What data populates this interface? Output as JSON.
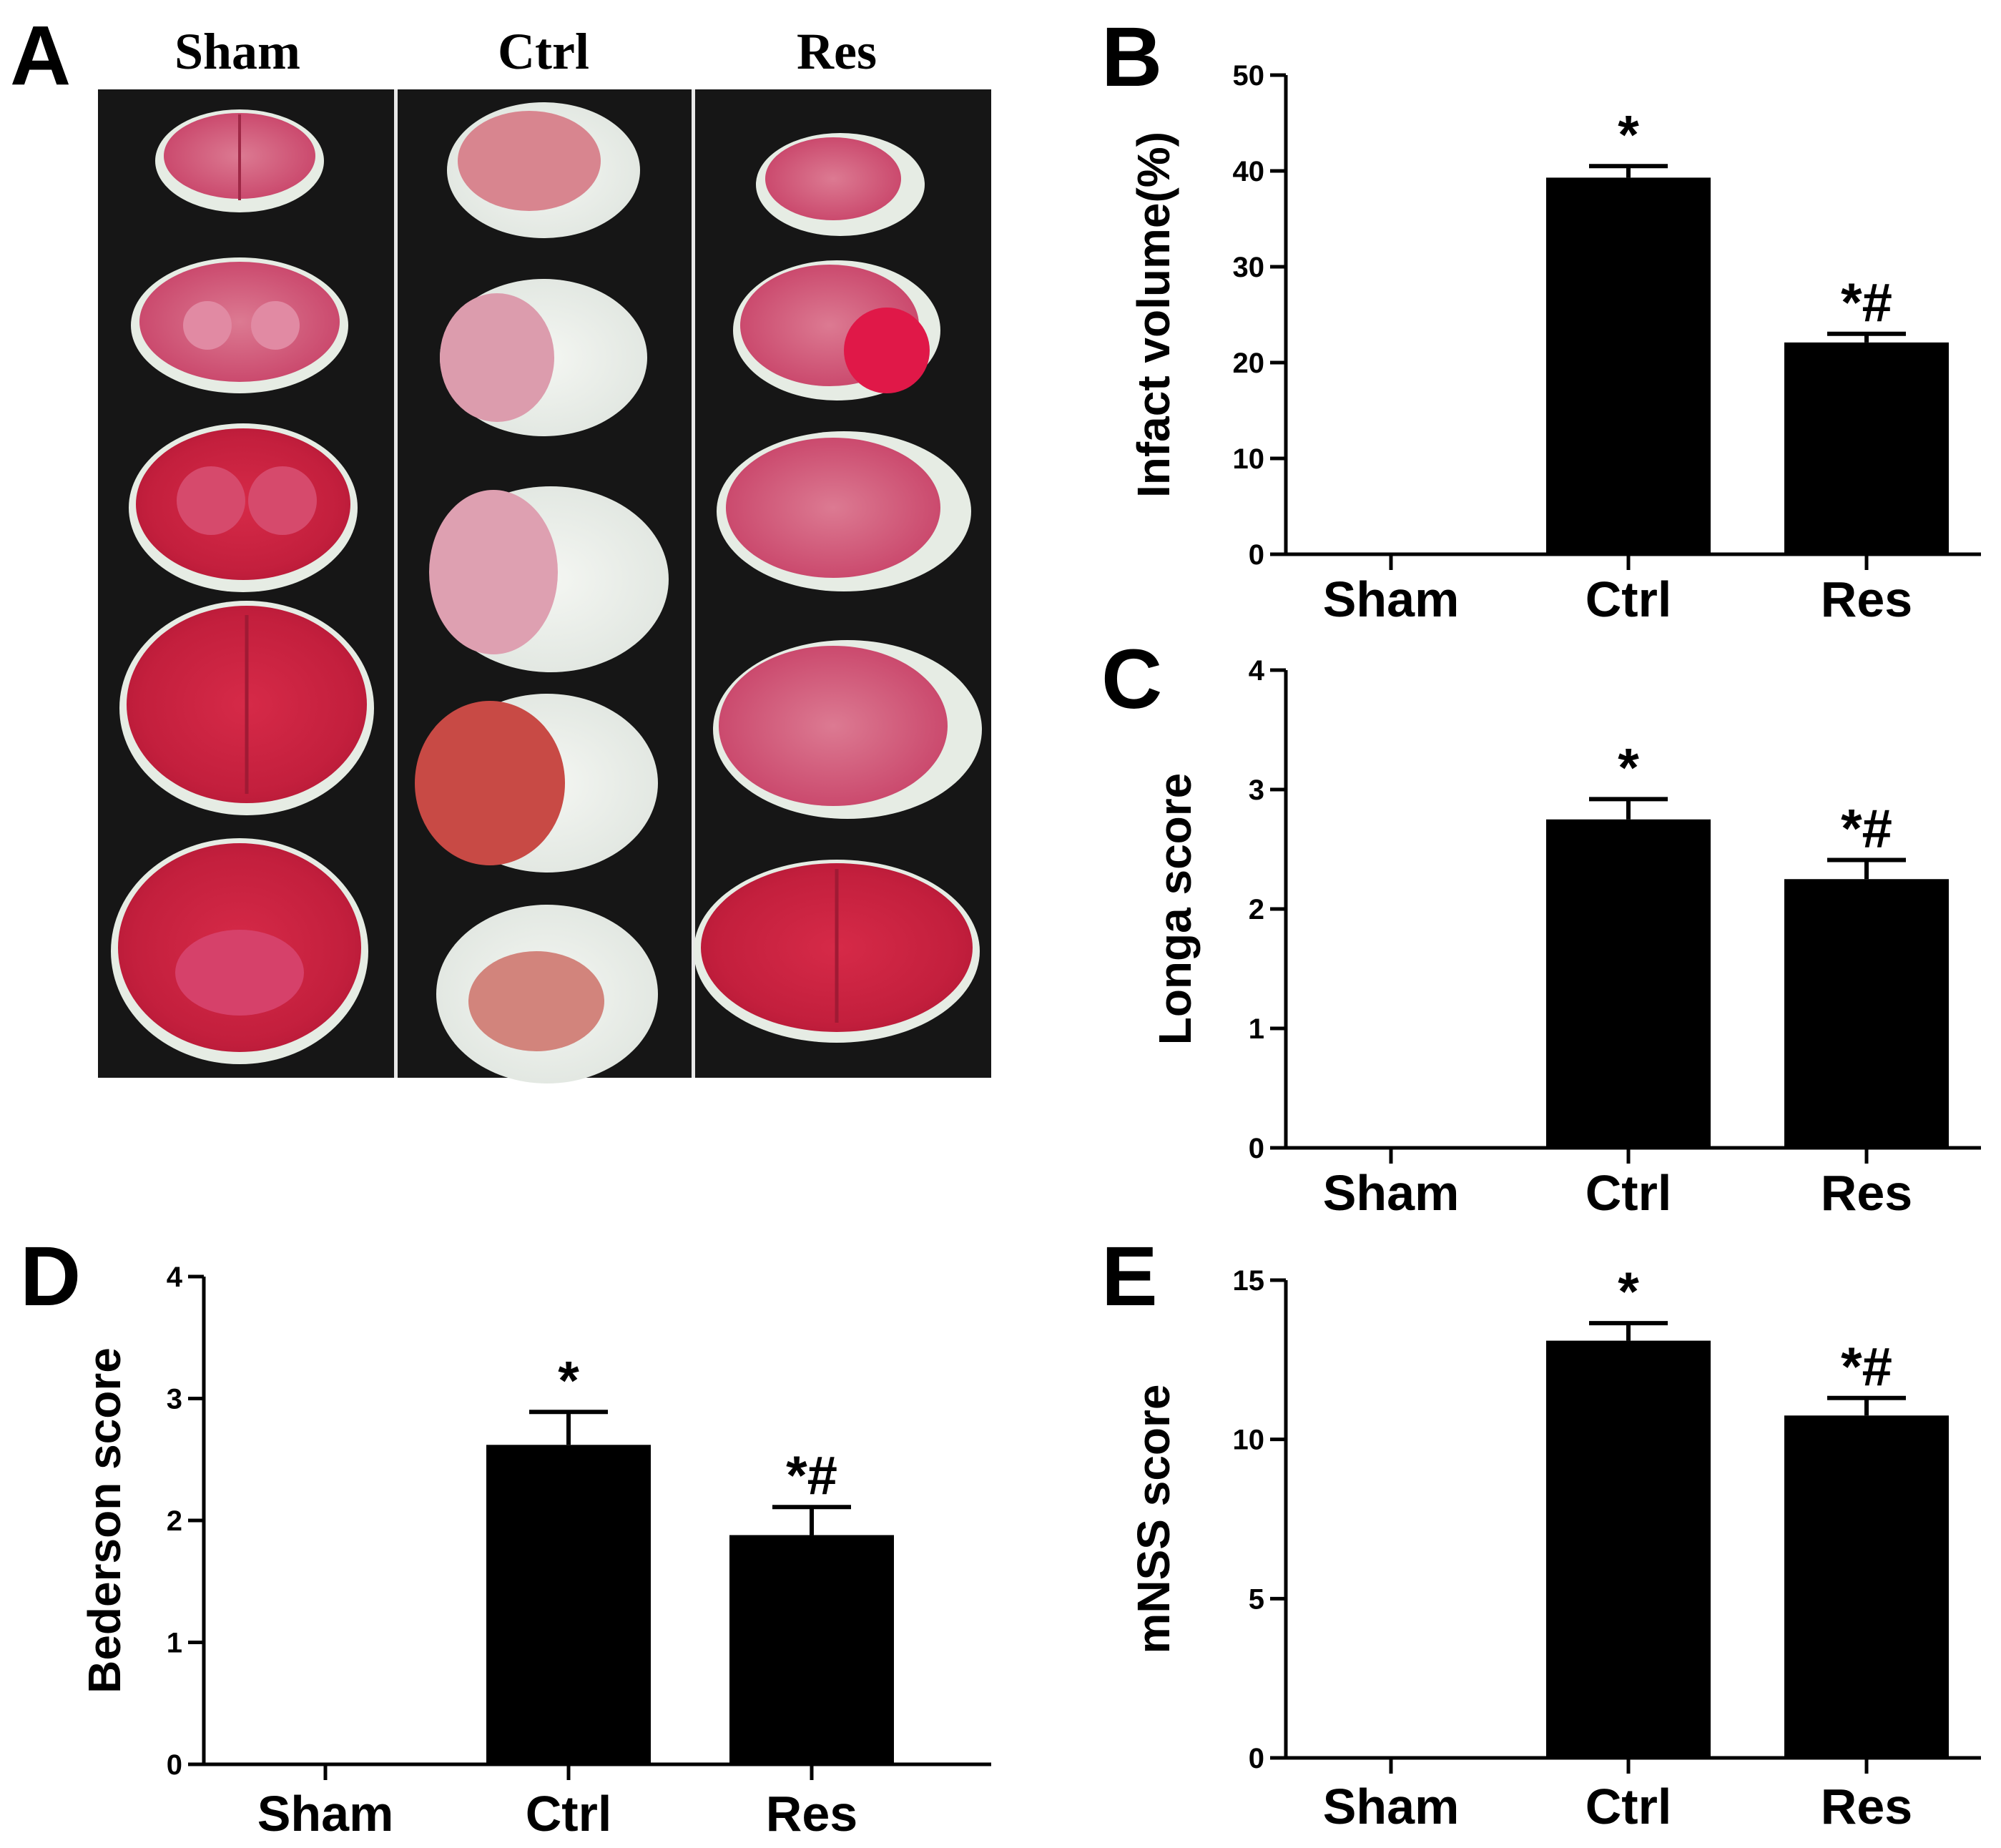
{
  "panel_a": {
    "letter": "A",
    "columns": [
      "Sham",
      "Ctrl",
      "Res"
    ]
  },
  "colors": {
    "background": "#ffffff",
    "bar": "#000000",
    "photo_bg": "#161616",
    "tissue_red": "#c8233f",
    "tissue_pink": "#d9637e",
    "infarct_white": "#ecf0ec"
  },
  "chart_data": [
    {
      "id": "B",
      "letter": "B",
      "type": "bar",
      "categories": [
        "Sham",
        "Ctrl",
        "Res"
      ],
      "values": [
        0,
        39.3,
        22.1
      ],
      "errors": [
        0,
        1.2,
        0.9
      ],
      "annotations": [
        "",
        "*",
        "*#"
      ],
      "ylabel": "Infact volume(%)",
      "ylim": [
        0,
        50
      ],
      "yticks": [
        "0",
        "10",
        "20",
        "30",
        "40",
        "50"
      ],
      "ytick_values": [
        0,
        10,
        20,
        30,
        40,
        50
      ]
    },
    {
      "id": "C",
      "letter": "C",
      "type": "bar",
      "categories": [
        "Sham",
        "Ctrl",
        "Res"
      ],
      "values": [
        0,
        2.75,
        2.25
      ],
      "errors": [
        0,
        0.17,
        0.16
      ],
      "annotations": [
        "",
        "*",
        "*#"
      ],
      "ylabel": "Longa score",
      "ylim": [
        0,
        4
      ],
      "yticks": [
        "0",
        "1",
        "2",
        "3",
        "4"
      ],
      "ytick_values": [
        0,
        1,
        2,
        3,
        4
      ]
    },
    {
      "id": "D",
      "letter": "D",
      "type": "bar",
      "categories": [
        "Sham",
        "Ctrl",
        "Res"
      ],
      "values": [
        0,
        2.62,
        1.88
      ],
      "errors": [
        0,
        0.27,
        0.23
      ],
      "annotations": [
        "",
        "*",
        "*#"
      ],
      "ylabel": "Bederson score",
      "ylim": [
        0,
        4
      ],
      "yticks": [
        "0",
        "1",
        "2",
        "3",
        "4"
      ],
      "ytick_values": [
        0,
        1,
        2,
        3,
        4
      ]
    },
    {
      "id": "E",
      "letter": "E",
      "type": "bar",
      "categories": [
        "Sham",
        "Ctrl",
        "Res"
      ],
      "values": [
        0,
        13.1,
        10.75
      ],
      "errors": [
        0,
        0.55,
        0.55
      ],
      "annotations": [
        "",
        "*",
        "*#"
      ],
      "ylabel": "mNSS score",
      "ylim": [
        0,
        15
      ],
      "yticks": [
        "0",
        "5",
        "10",
        "15"
      ],
      "ytick_values": [
        0,
        5,
        10,
        15
      ]
    }
  ]
}
